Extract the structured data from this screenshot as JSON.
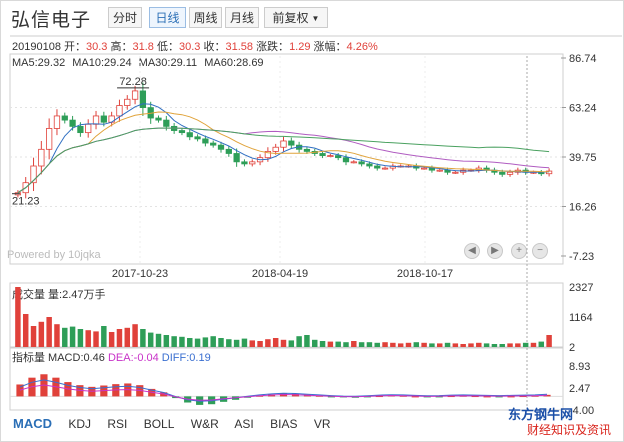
{
  "toolbar": {
    "stock_name": "弘信电子",
    "buttons": [
      "分时",
      "日线",
      "周线",
      "月线"
    ],
    "active": "日线",
    "adjust_label": "前复权",
    "adjust_icon": "chevron-down-icon"
  },
  "quote": {
    "date": "20190108",
    "open_label": "开：",
    "open": "30.3",
    "high_label": "高：",
    "high": "31.8",
    "low_label": "低：",
    "low": "30.3",
    "close_label": "收：",
    "close": "31.58",
    "change_label": "涨跌：",
    "change": "1.29",
    "pct_label": "涨幅：",
    "pct": "4.26%"
  },
  "ma_legend": [
    {
      "label": "MA5:29.32",
      "color": "#2f6fc2"
    },
    {
      "label": "MA10:29.24",
      "color": "#e0a33a"
    },
    {
      "label": "MA30:29.11",
      "color": "#b05cc1"
    },
    {
      "label": "MA60:28.69",
      "color": "#4aa160"
    }
  ],
  "powered_by": "Powered by 10jqka",
  "price_axis": [
    "86.74",
    "63.24",
    "39.75",
    "16.26",
    "-7.23"
  ],
  "date_axis": [
    "2017-10-23",
    "2018-04-19",
    "2018-10-17"
  ],
  "price_annotations": {
    "high": "72.28",
    "low": "21.23"
  },
  "volume": {
    "label": "成交量 量:2.47万手",
    "axis": [
      "2327",
      "1164",
      "2"
    ]
  },
  "indicator": {
    "label_prefix": "指标量 MACD:0.46",
    "dea": "DEA:-0.04",
    "diff": "DIFF:0.19",
    "axis": [
      "8.93",
      "2.47",
      "-4.00"
    ]
  },
  "tabs": [
    "MACD",
    "KDJ",
    "RSI",
    "BOLL",
    "W&R",
    "ASI",
    "BIAS",
    "VR"
  ],
  "active_tab": "MACD",
  "colors": {
    "up": "#e0413a",
    "down": "#2e9e58",
    "accent": "#2b6fb6",
    "dea": "#c832c8",
    "diff": "#3a6fd0"
  },
  "watermark": {
    "line1": "东方钢牛网",
    "line2": "财经知识及资讯"
  },
  "chart_data": {
    "type": "candlestick",
    "price": [
      21.2,
      26,
      34,
      42,
      52,
      58,
      56,
      53,
      50,
      54,
      58,
      55,
      58,
      63,
      66,
      70,
      62,
      57,
      56,
      53,
      51,
      50,
      48,
      47,
      45,
      44,
      42,
      40,
      36,
      35,
      36,
      38,
      41,
      43,
      46,
      44,
      42,
      41,
      40,
      39,
      39,
      38,
      36,
      36,
      35,
      34,
      33,
      33,
      34,
      34,
      34,
      33,
      33,
      32,
      32,
      31,
      31,
      32,
      32,
      33,
      32,
      31,
      30,
      31,
      32,
      31,
      31,
      30.3,
      31.58
    ],
    "volume_relative": [
      1.0,
      0.55,
      0.35,
      0.42,
      0.5,
      0.38,
      0.32,
      0.34,
      0.3,
      0.28,
      0.26,
      0.35,
      0.25,
      0.3,
      0.32,
      0.38,
      0.3,
      0.24,
      0.22,
      0.2,
      0.18,
      0.17,
      0.15,
      0.14,
      0.16,
      0.18,
      0.15,
      0.13,
      0.12,
      0.14,
      0.11,
      0.1,
      0.13,
      0.15,
      0.12,
      0.11,
      0.18,
      0.2,
      0.12,
      0.1,
      0.09,
      0.09,
      0.08,
      0.1,
      0.08,
      0.08,
      0.07,
      0.08,
      0.07,
      0.06,
      0.07,
      0.08,
      0.07,
      0.06,
      0.06,
      0.07,
      0.06,
      0.05,
      0.06,
      0.07,
      0.06,
      0.05,
      0.05,
      0.06,
      0.06,
      0.07,
      0.07,
      0.09,
      0.2
    ],
    "macd": [
      3.5,
      5.5,
      6.5,
      5.5,
      4.2,
      3.3,
      2.8,
      3.2,
      3.6,
      3.8,
      3.3,
      2.2,
      1.2,
      -0.5,
      -1.8,
      -2.5,
      -2.3,
      -1.6,
      -1.0,
      -0.4,
      0.2,
      0.6,
      0.9,
      0.8,
      0.5,
      0.2,
      -0.1,
      -0.3,
      -0.4,
      -0.2,
      0.1,
      0.3,
      0.2,
      0.0,
      -0.2,
      -0.1,
      0.1,
      0.2,
      0.1,
      0.0,
      -0.1,
      0.0,
      0.1,
      0.2,
      0.46
    ],
    "y_range": [
      -7.23,
      86.74
    ],
    "volume_range": [
      2,
      2327
    ],
    "indicator_range": [
      -4.0,
      8.93
    ]
  }
}
